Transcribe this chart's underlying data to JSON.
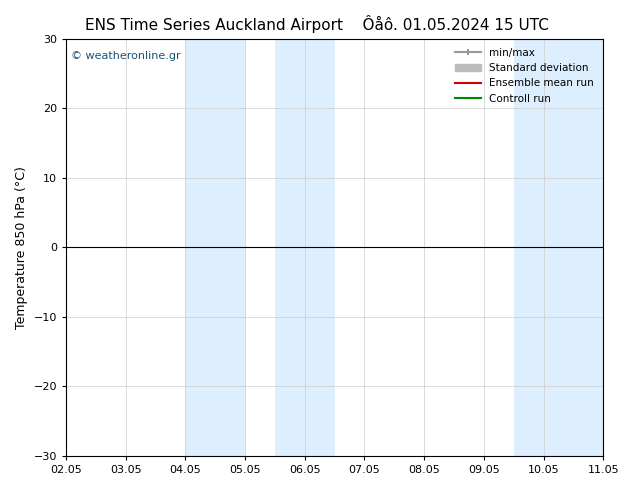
{
  "title_left": "ENS Time Series Auckland Airport",
  "title_right": "Ôåô. 01.05.2024 15 UTC",
  "ylabel": "Temperature 850 hPa (°C)",
  "ylim": [
    -30,
    30
  ],
  "yticks": [
    -30,
    -20,
    -10,
    0,
    10,
    20,
    30
  ],
  "xlim": [
    0,
    9
  ],
  "xtick_labels": [
    "02.05",
    "03.05",
    "04.05",
    "05.05",
    "06.05",
    "07.05",
    "08.05",
    "09.05",
    "10.05",
    "11.05"
  ],
  "watermark": "© weatheronline.gr",
  "watermark_color": "#1a5276",
  "background_color": "#ffffff",
  "plot_bg_color": "#ffffff",
  "blue_band_color": "#ddeeff",
  "blue_band_alpha": 0.6,
  "blue_bands": [
    [
      2,
      3
    ],
    [
      3.5,
      4.5
    ],
    [
      7.5,
      8.5
    ],
    [
      8.5,
      9
    ]
  ],
  "hline_y": 0,
  "hline_color": "#000000",
  "legend_labels": [
    "min/max",
    "Standard deviation",
    "Ensemble mean run",
    "Controll run"
  ],
  "legend_colors": [
    "#999999",
    "#bbbbbb",
    "#cc0000",
    "#008800"
  ],
  "grid_color": "#cccccc",
  "title_fontsize": 11,
  "label_fontsize": 9,
  "tick_fontsize": 8
}
